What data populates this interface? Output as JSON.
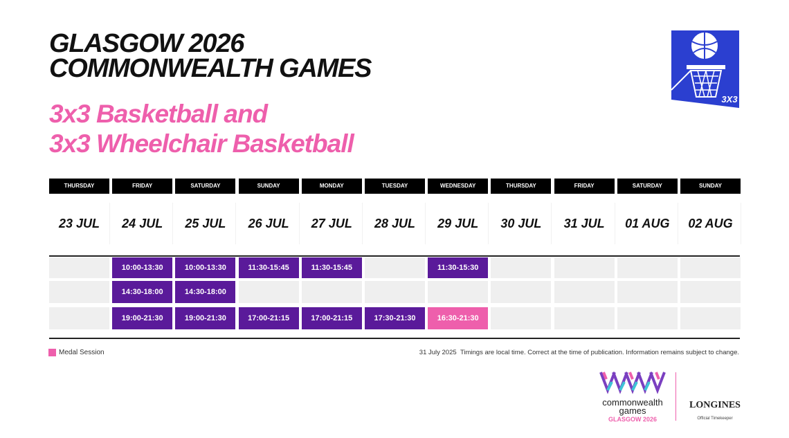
{
  "header": {
    "title": [
      "GLASGOW 2026",
      "COMMONWEALTH GAMES"
    ],
    "subtitle": [
      "3x3 Basketball and",
      "3x3 Wheelchair Basketball"
    ],
    "logo_text": "3X3"
  },
  "days": [
    {
      "weekday": "THURSDAY",
      "date": "23 JUL"
    },
    {
      "weekday": "FRIDAY",
      "date": "24 JUL"
    },
    {
      "weekday": "SATURDAY",
      "date": "25 JUL"
    },
    {
      "weekday": "SUNDAY",
      "date": "26 JUL"
    },
    {
      "weekday": "MONDAY",
      "date": "27 JUL"
    },
    {
      "weekday": "TUESDAY",
      "date": "28 JUL"
    },
    {
      "weekday": "WEDNESDAY",
      "date": "29 JUL"
    },
    {
      "weekday": "THURSDAY",
      "date": "30 JUL"
    },
    {
      "weekday": "FRIDAY",
      "date": "31 JUL"
    },
    {
      "weekday": "SATURDAY",
      "date": "01 AUG"
    },
    {
      "weekday": "SUNDAY",
      "date": "02 AUG"
    }
  ],
  "sessions": [
    [
      null,
      "10:00-13:30",
      "10:00-13:30",
      "11:30-15:45",
      "11:30-15:45",
      null,
      "11:30-15:30",
      null,
      null,
      null,
      null
    ],
    [
      null,
      "14:30-18:00",
      "14:30-18:00",
      null,
      null,
      null,
      null,
      null,
      null,
      null,
      null
    ],
    [
      null,
      "19:00-21:30",
      "19:00-21:30",
      "17:00-21:15",
      "17:00-21:15",
      "17:30-21:30",
      {
        "time": "16:30-21:30",
        "medal": true
      },
      null,
      null,
      null,
      null
    ]
  ],
  "colors": {
    "session": "#5a1a9a",
    "medal": "#ee5fac",
    "empty": "#efefef"
  },
  "footer": {
    "legend": "Medal Session",
    "date": "31 July 2025",
    "note": "Timings are local time. Correct at the time of publication. Information remains subject to change."
  },
  "logos": {
    "cwg": [
      "commonwealth",
      "games"
    ],
    "cwg_city": "GLASGOW 2026",
    "sponsor": "LONGINES",
    "sponsor_role": "Official Timekeeper"
  }
}
